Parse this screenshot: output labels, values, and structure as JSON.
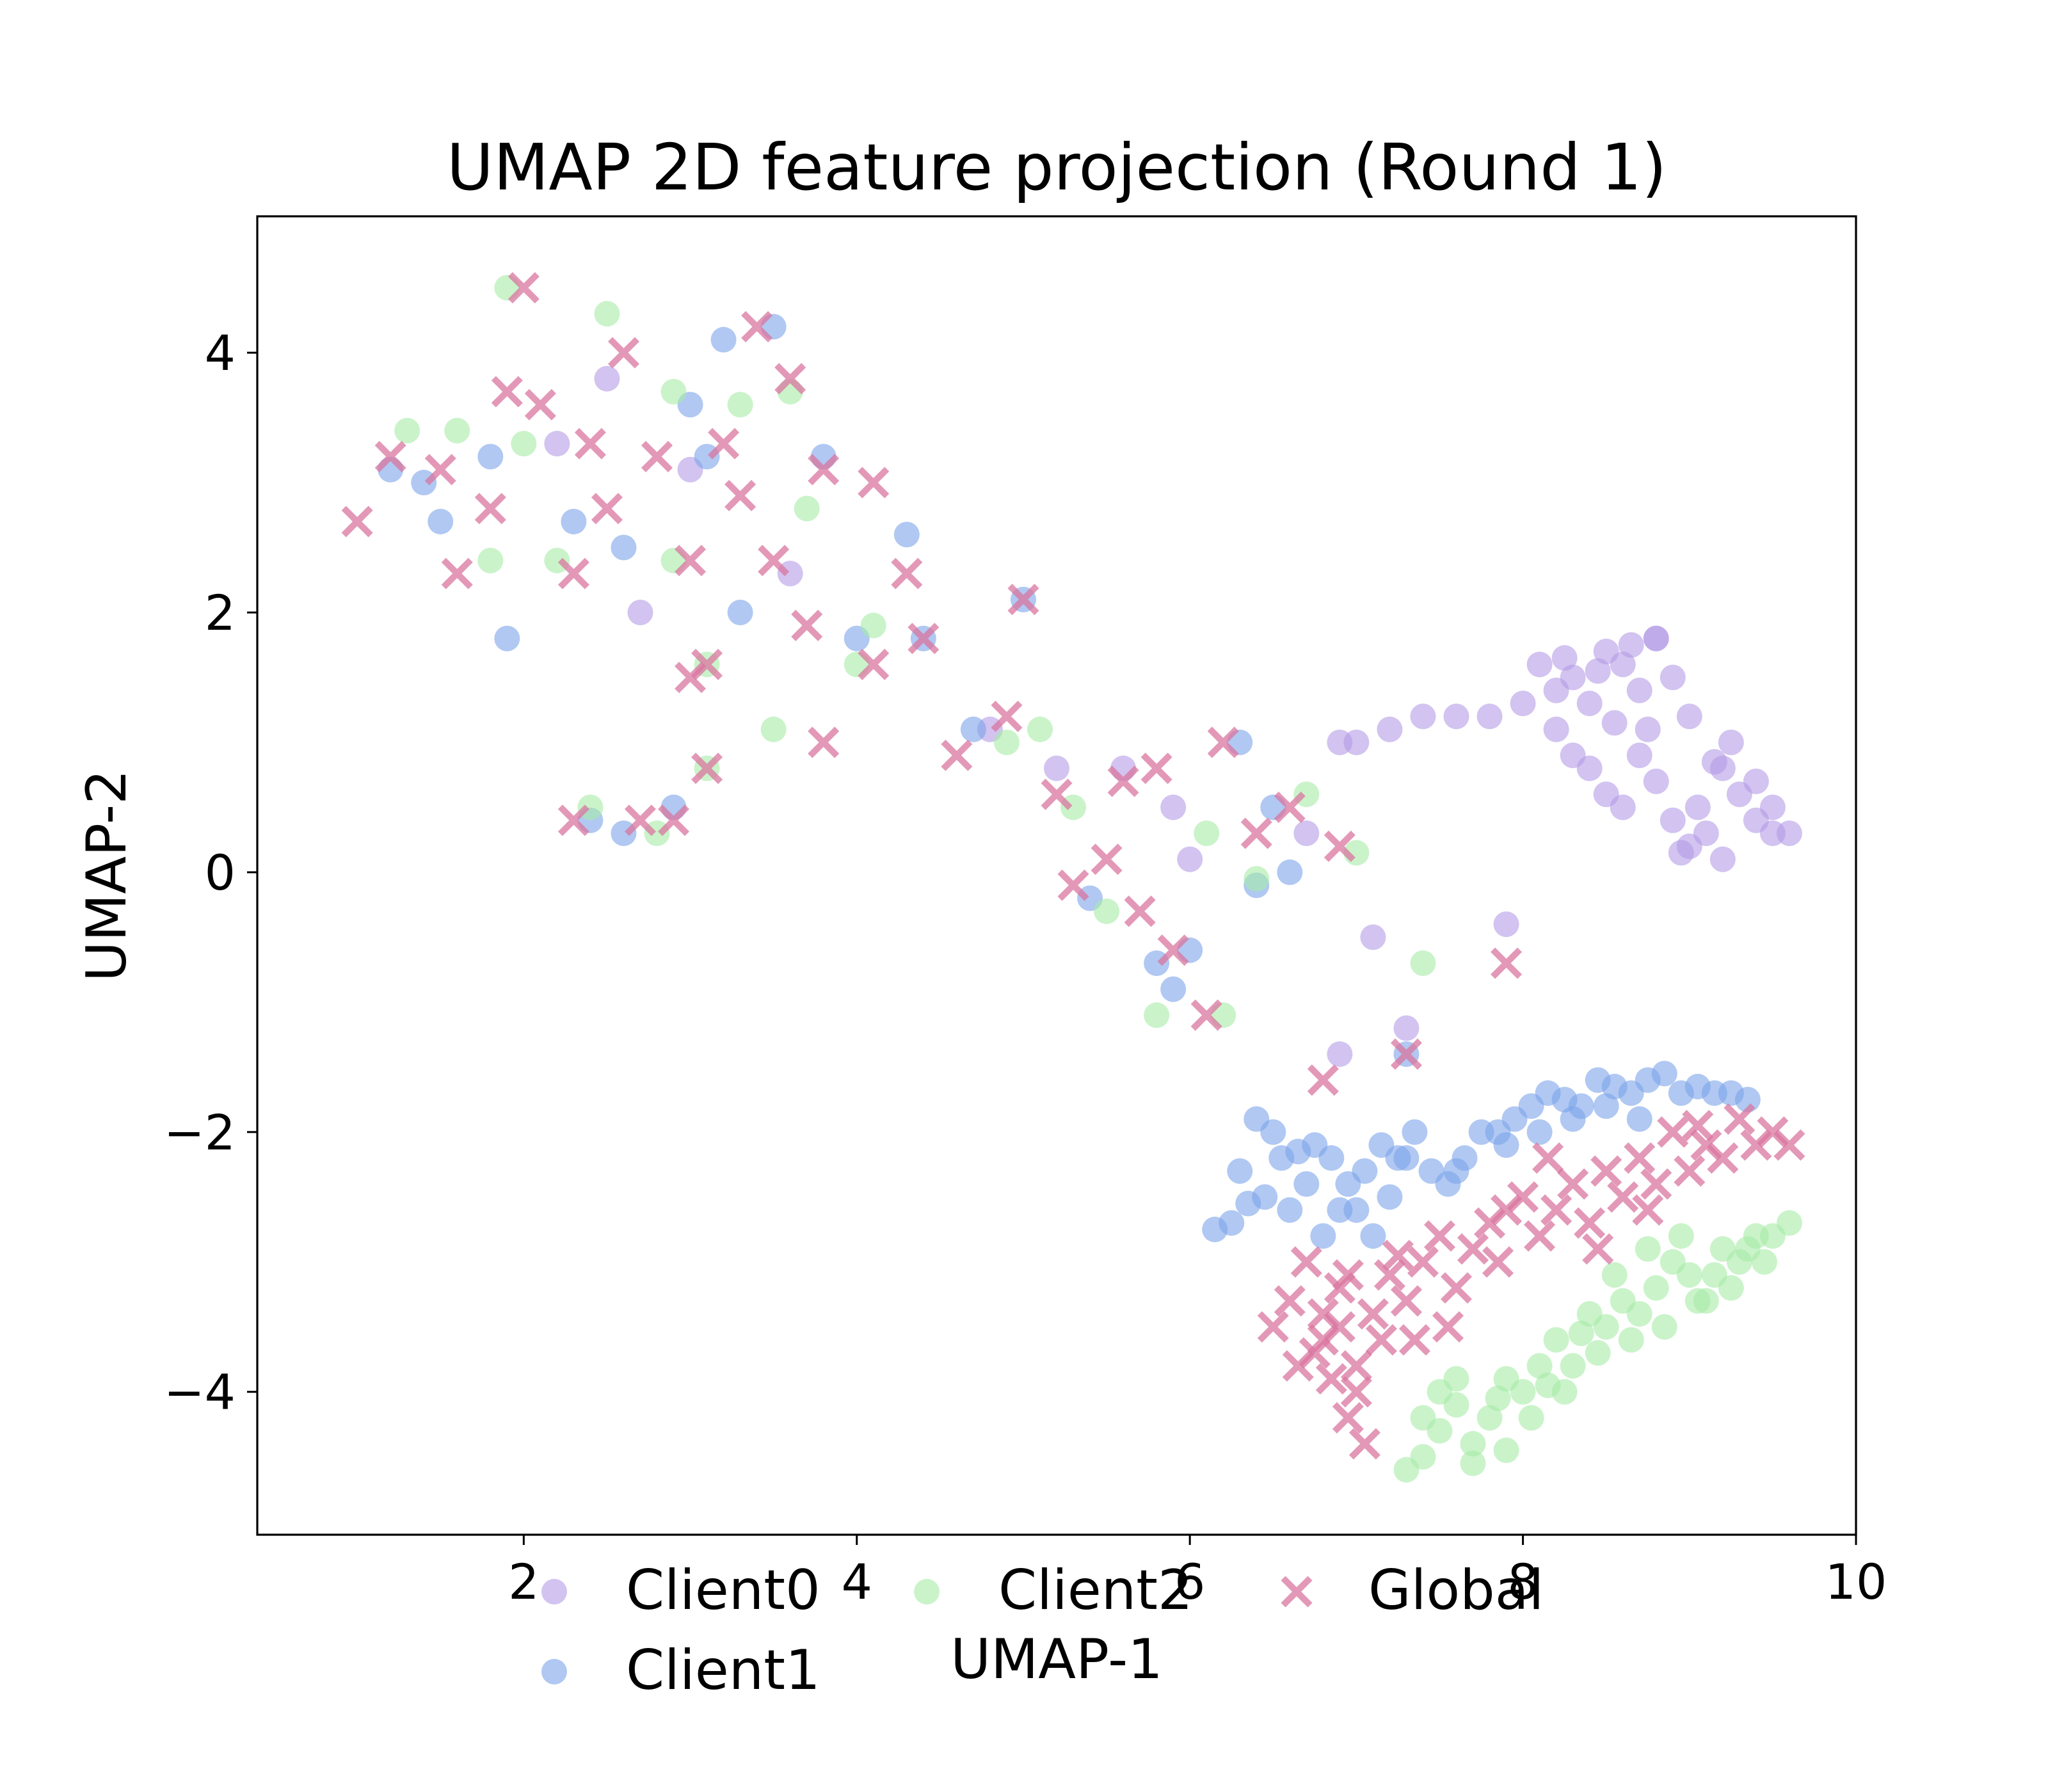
{
  "chart_data": {
    "type": "scatter",
    "title": "UMAP 2D feature projection (Round 1)",
    "xlabel": "UMAP-1",
    "ylabel": "UMAP-2",
    "xlim": [
      0.4,
      10.0
    ],
    "ylim": [
      -5.1,
      5.05
    ],
    "xticks": [
      2,
      4,
      6,
      8,
      10
    ],
    "yticks": [
      4,
      2,
      0,
      -2,
      -4
    ],
    "xtick_labels": [
      "2",
      "4",
      "6",
      "8",
      "10"
    ],
    "ytick_labels": [
      "4",
      "2",
      "0",
      "−2",
      "−4"
    ],
    "grid": false,
    "legend_position": "bottom-center",
    "series": [
      {
        "name": "Client0",
        "marker": "circle",
        "color": "#b49be6",
        "points": [
          [
            8.1,
            1.6
          ],
          [
            8.2,
            1.4
          ],
          [
            8.3,
            1.5
          ],
          [
            8.4,
            1.3
          ],
          [
            8.5,
            1.7
          ],
          [
            8.6,
            1.6
          ],
          [
            8.7,
            1.4
          ],
          [
            8.8,
            1.8
          ],
          [
            8.9,
            1.5
          ],
          [
            9.0,
            1.2
          ],
          [
            8.2,
            1.1
          ],
          [
            8.3,
            0.9
          ],
          [
            8.4,
            0.8
          ],
          [
            8.5,
            0.6
          ],
          [
            8.6,
            0.5
          ],
          [
            8.7,
            0.9
          ],
          [
            8.8,
            0.7
          ],
          [
            8.9,
            0.4
          ],
          [
            9.0,
            0.2
          ],
          [
            9.1,
            0.3
          ],
          [
            9.2,
            0.8
          ],
          [
            9.3,
            0.6
          ],
          [
            9.4,
            0.4
          ],
          [
            9.5,
            0.5
          ],
          [
            9.6,
            0.3
          ],
          [
            8.0,
            1.3
          ],
          [
            7.8,
            1.2
          ],
          [
            7.6,
            1.2
          ],
          [
            7.4,
            1.2
          ],
          [
            7.2,
            1.1
          ],
          [
            7.0,
            1.0
          ],
          [
            6.9,
            1.0
          ],
          [
            8.8,
            1.8
          ],
          [
            9.2,
            0.1
          ],
          [
            8.95,
            0.15
          ],
          [
            9.4,
            0.7
          ],
          [
            9.05,
            0.5
          ],
          [
            8.75,
            1.1
          ],
          [
            8.55,
            1.15
          ],
          [
            8.45,
            1.55
          ],
          [
            8.25,
            1.65
          ],
          [
            9.25,
            1.0
          ],
          [
            9.15,
            0.85
          ],
          [
            8.65,
            1.75
          ],
          [
            9.5,
            0.3
          ],
          [
            2.5,
            3.8
          ],
          [
            3.0,
            3.1
          ],
          [
            3.6,
            2.3
          ],
          [
            2.2,
            3.3
          ],
          [
            2.7,
            2.0
          ],
          [
            5.2,
            0.8
          ],
          [
            5.6,
            0.8
          ],
          [
            6.0,
            0.1
          ],
          [
            7.1,
            -0.5
          ],
          [
            7.3,
            -1.2
          ],
          [
            6.9,
            -1.4
          ],
          [
            7.9,
            -0.4
          ],
          [
            6.7,
            0.3
          ],
          [
            5.9,
            0.5
          ],
          [
            4.8,
            1.1
          ]
        ]
      },
      {
        "name": "Client1",
        "marker": "circle",
        "color": "#7ba3ea",
        "points": [
          [
            6.15,
            -2.75
          ],
          [
            6.25,
            -2.7
          ],
          [
            6.35,
            -2.55
          ],
          [
            6.45,
            -2.5
          ],
          [
            6.55,
            -2.2
          ],
          [
            6.65,
            -2.15
          ],
          [
            6.75,
            -2.1
          ],
          [
            6.85,
            -2.2
          ],
          [
            6.95,
            -2.4
          ],
          [
            7.05,
            -2.3
          ],
          [
            7.15,
            -2.1
          ],
          [
            7.25,
            -2.2
          ],
          [
            7.35,
            -2.0
          ],
          [
            7.45,
            -2.3
          ],
          [
            7.55,
            -2.4
          ],
          [
            7.65,
            -2.2
          ],
          [
            7.75,
            -2.0
          ],
          [
            7.85,
            -2.0
          ],
          [
            7.95,
            -1.9
          ],
          [
            8.05,
            -1.8
          ],
          [
            8.15,
            -1.7
          ],
          [
            8.25,
            -1.75
          ],
          [
            8.35,
            -1.8
          ],
          [
            8.45,
            -1.6
          ],
          [
            8.55,
            -1.65
          ],
          [
            8.65,
            -1.7
          ],
          [
            8.75,
            -1.6
          ],
          [
            8.85,
            -1.55
          ],
          [
            8.95,
            -1.7
          ],
          [
            9.05,
            -1.65
          ],
          [
            9.15,
            -1.7
          ],
          [
            9.25,
            -1.7
          ],
          [
            9.35,
            -1.75
          ],
          [
            6.3,
            -2.3
          ],
          [
            6.4,
            -1.9
          ],
          [
            6.6,
            -2.6
          ],
          [
            6.8,
            -2.8
          ],
          [
            7.0,
            -2.6
          ],
          [
            7.2,
            -2.5
          ],
          [
            7.6,
            -2.3
          ],
          [
            7.9,
            -2.1
          ],
          [
            8.1,
            -2.0
          ],
          [
            8.3,
            -1.9
          ],
          [
            8.5,
            -1.8
          ],
          [
            6.5,
            -2.0
          ],
          [
            6.7,
            -2.4
          ],
          [
            6.9,
            -2.6
          ],
          [
            7.1,
            -2.8
          ],
          [
            7.3,
            -2.2
          ],
          [
            8.7,
            -1.9
          ],
          [
            1.4,
            3.0
          ],
          [
            1.5,
            2.7
          ],
          [
            1.8,
            3.2
          ],
          [
            2.3,
            2.7
          ],
          [
            2.6,
            2.5
          ],
          [
            3.0,
            3.6
          ],
          [
            3.2,
            4.1
          ],
          [
            3.5,
            4.2
          ],
          [
            3.3,
            2.0
          ],
          [
            3.8,
            3.2
          ],
          [
            4.0,
            1.8
          ],
          [
            4.3,
            2.6
          ],
          [
            2.4,
            0.4
          ],
          [
            2.6,
            0.3
          ],
          [
            2.9,
            0.5
          ],
          [
            4.7,
            1.1
          ],
          [
            5.0,
            2.1
          ],
          [
            5.4,
            -0.2
          ],
          [
            5.8,
            -0.7
          ],
          [
            5.9,
            -0.9
          ],
          [
            6.0,
            -0.6
          ],
          [
            6.4,
            -0.1
          ],
          [
            6.5,
            0.5
          ],
          [
            6.6,
            0.0
          ],
          [
            7.3,
            -1.4
          ],
          [
            1.2,
            3.1
          ],
          [
            1.9,
            1.8
          ],
          [
            3.1,
            3.2
          ],
          [
            4.4,
            1.8
          ],
          [
            6.3,
            1.0
          ]
        ]
      },
      {
        "name": "Client2",
        "marker": "circle",
        "color": "#a6eba6",
        "points": [
          [
            7.3,
            -4.6
          ],
          [
            7.4,
            -4.5
          ],
          [
            7.5,
            -4.3
          ],
          [
            7.6,
            -4.1
          ],
          [
            7.7,
            -4.4
          ],
          [
            7.8,
            -4.2
          ],
          [
            7.9,
            -3.9
          ],
          [
            8.0,
            -4.0
          ],
          [
            8.1,
            -3.8
          ],
          [
            8.2,
            -3.6
          ],
          [
            8.3,
            -3.8
          ],
          [
            8.4,
            -3.4
          ],
          [
            8.5,
            -3.5
          ],
          [
            8.6,
            -3.3
          ],
          [
            8.7,
            -3.4
          ],
          [
            8.8,
            -3.2
          ],
          [
            8.9,
            -3.0
          ],
          [
            9.0,
            -3.1
          ],
          [
            9.1,
            -3.3
          ],
          [
            9.2,
            -2.9
          ],
          [
            9.3,
            -3.0
          ],
          [
            9.4,
            -2.8
          ],
          [
            9.5,
            -2.8
          ],
          [
            9.6,
            -2.7
          ],
          [
            7.5,
            -4.0
          ],
          [
            7.7,
            -4.55
          ],
          [
            7.9,
            -4.45
          ],
          [
            8.05,
            -4.2
          ],
          [
            8.25,
            -4.0
          ],
          [
            8.45,
            -3.7
          ],
          [
            8.65,
            -3.6
          ],
          [
            8.85,
            -3.5
          ],
          [
            9.05,
            -3.3
          ],
          [
            9.25,
            -3.2
          ],
          [
            9.45,
            -3.0
          ],
          [
            7.6,
            -3.9
          ],
          [
            7.85,
            -4.05
          ],
          [
            8.15,
            -3.95
          ],
          [
            8.35,
            -3.55
          ],
          [
            8.55,
            -3.1
          ],
          [
            8.75,
            -2.9
          ],
          [
            8.95,
            -2.8
          ],
          [
            9.15,
            -3.1
          ],
          [
            9.35,
            -2.9
          ],
          [
            7.4,
            -4.2
          ],
          [
            1.3,
            3.4
          ],
          [
            1.6,
            3.4
          ],
          [
            2.0,
            3.3
          ],
          [
            2.2,
            2.4
          ],
          [
            2.5,
            4.3
          ],
          [
            2.9,
            3.7
          ],
          [
            3.3,
            3.6
          ],
          [
            3.5,
            1.1
          ],
          [
            3.6,
            3.7
          ],
          [
            3.7,
            2.8
          ],
          [
            4.0,
            1.6
          ],
          [
            2.4,
            0.5
          ],
          [
            2.8,
            0.3
          ],
          [
            3.1,
            1.6
          ],
          [
            4.9,
            1.0
          ],
          [
            5.3,
            0.5
          ],
          [
            5.5,
            -0.3
          ],
          [
            5.8,
            -1.1
          ],
          [
            6.1,
            0.3
          ],
          [
            6.4,
            -0.05
          ],
          [
            6.7,
            0.6
          ],
          [
            7.0,
            0.15
          ],
          [
            7.4,
            -0.7
          ],
          [
            5.1,
            1.1
          ],
          [
            1.8,
            2.4
          ],
          [
            2.9,
            2.4
          ],
          [
            3.1,
            0.8
          ],
          [
            4.1,
            1.9
          ],
          [
            6.2,
            -1.1
          ],
          [
            1.9,
            4.5
          ]
        ]
      },
      {
        "name": "Global",
        "marker": "x",
        "color": "#d9759f",
        "points": [
          [
            6.5,
            -3.5
          ],
          [
            6.6,
            -3.3
          ],
          [
            6.7,
            -3.0
          ],
          [
            6.8,
            -3.6
          ],
          [
            6.9,
            -3.2
          ],
          [
            7.0,
            -3.8
          ],
          [
            7.1,
            -3.4
          ],
          [
            7.2,
            -3.1
          ],
          [
            6.85,
            -3.9
          ],
          [
            6.95,
            -4.2
          ],
          [
            7.05,
            -4.4
          ],
          [
            6.75,
            -3.7
          ],
          [
            6.65,
            -3.8
          ],
          [
            6.9,
            -3.5
          ],
          [
            7.3,
            -3.3
          ],
          [
            7.4,
            -3.0
          ],
          [
            7.5,
            -2.8
          ],
          [
            7.6,
            -3.2
          ],
          [
            7.7,
            -2.9
          ],
          [
            7.8,
            -2.7
          ],
          [
            7.9,
            -2.6
          ],
          [
            8.0,
            -2.5
          ],
          [
            8.1,
            -2.8
          ],
          [
            8.2,
            -2.6
          ],
          [
            8.3,
            -2.4
          ],
          [
            8.4,
            -2.7
          ],
          [
            8.5,
            -2.3
          ],
          [
            8.6,
            -2.5
          ],
          [
            8.7,
            -2.2
          ],
          [
            8.8,
            -2.4
          ],
          [
            8.9,
            -2.0
          ],
          [
            9.0,
            -2.3
          ],
          [
            9.1,
            -2.1
          ],
          [
            9.2,
            -2.2
          ],
          [
            9.3,
            -1.9
          ],
          [
            9.4,
            -2.1
          ],
          [
            9.5,
            -2.0
          ],
          [
            9.6,
            -2.1
          ],
          [
            7.15,
            -3.6
          ],
          [
            7.25,
            -2.95
          ],
          [
            7.55,
            -3.5
          ],
          [
            7.85,
            -3.0
          ],
          [
            8.15,
            -2.2
          ],
          [
            8.45,
            -2.9
          ],
          [
            8.75,
            -2.6
          ],
          [
            9.05,
            -1.95
          ],
          [
            6.95,
            -3.1
          ],
          [
            7.0,
            -4.0
          ],
          [
            6.8,
            -3.4
          ],
          [
            7.35,
            -3.6
          ],
          [
            1.5,
            3.1
          ],
          [
            1.6,
            2.3
          ],
          [
            1.9,
            3.7
          ],
          [
            2.3,
            2.3
          ],
          [
            2.4,
            3.3
          ],
          [
            2.5,
            2.8
          ],
          [
            2.8,
            3.2
          ],
          [
            3.0,
            2.4
          ],
          [
            3.1,
            1.6
          ],
          [
            3.2,
            3.3
          ],
          [
            3.3,
            2.9
          ],
          [
            3.5,
            2.4
          ],
          [
            3.6,
            3.8
          ],
          [
            3.7,
            1.9
          ],
          [
            3.8,
            3.1
          ],
          [
            4.1,
            1.6
          ],
          [
            4.3,
            2.3
          ],
          [
            4.4,
            1.8
          ],
          [
            2.1,
            3.6
          ],
          [
            2.7,
            0.4
          ],
          [
            2.9,
            0.4
          ],
          [
            3.1,
            0.8
          ],
          [
            2.3,
            0.4
          ],
          [
            4.9,
            1.2
          ],
          [
            5.0,
            2.1
          ],
          [
            5.2,
            0.6
          ],
          [
            5.5,
            0.1
          ],
          [
            5.7,
            -0.3
          ],
          [
            5.9,
            -0.6
          ],
          [
            6.1,
            -1.1
          ],
          [
            6.4,
            0.3
          ],
          [
            6.6,
            0.5
          ],
          [
            6.9,
            0.2
          ],
          [
            7.3,
            -1.4
          ],
          [
            7.9,
            -0.7
          ],
          [
            4.6,
            0.9
          ],
          [
            3.8,
            1.0
          ],
          [
            1.0,
            2.7
          ],
          [
            1.2,
            3.2
          ],
          [
            5.6,
            0.7
          ],
          [
            2.0,
            4.5
          ],
          [
            2.6,
            4.0
          ],
          [
            3.4,
            4.2
          ],
          [
            1.8,
            2.8
          ],
          [
            4.1,
            3.0
          ],
          [
            6.8,
            -1.6
          ],
          [
            5.3,
            -0.1
          ],
          [
            6.2,
            1.0
          ],
          [
            5.8,
            0.8
          ],
          [
            3.0,
            1.5
          ]
        ]
      }
    ]
  }
}
